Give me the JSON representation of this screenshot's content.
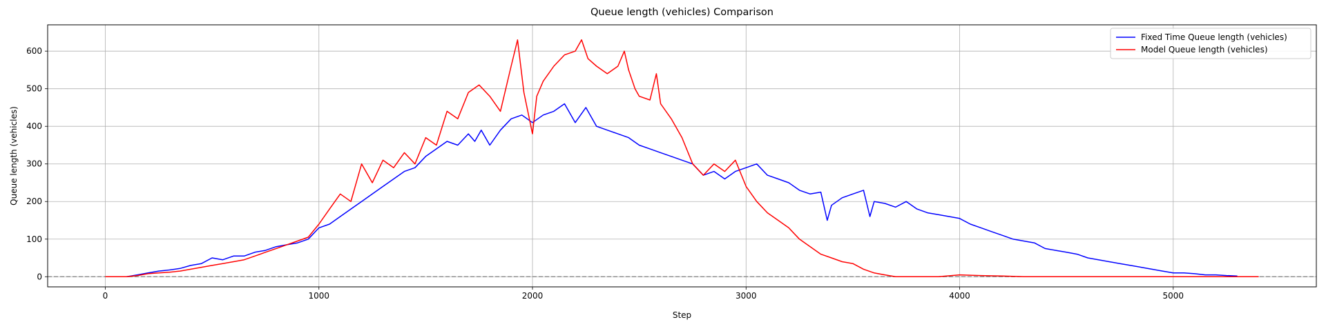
{
  "chart_data": {
    "type": "line",
    "title": "Queue length (vehicles) Comparison",
    "xlabel": "Step",
    "ylabel": "Queue length (vehicles)",
    "xlim": [
      -270,
      5670
    ],
    "ylim": [
      -27,
      670
    ],
    "xticks": [
      0,
      1000,
      2000,
      3000,
      4000,
      5000
    ],
    "yticks": [
      0,
      100,
      200,
      300,
      400,
      500,
      600
    ],
    "grid": true,
    "legend_position": "top-right",
    "reference_line": {
      "y": 0,
      "style": "dashed",
      "color": "#808080"
    },
    "series": [
      {
        "name": "Fixed Time Queue length (vehicles)",
        "color": "#0000ff",
        "x": [
          0,
          100,
          150,
          200,
          250,
          300,
          350,
          400,
          450,
          500,
          550,
          600,
          650,
          700,
          750,
          800,
          850,
          900,
          950,
          1000,
          1050,
          1100,
          1150,
          1200,
          1250,
          1300,
          1350,
          1400,
          1450,
          1500,
          1550,
          1600,
          1650,
          1700,
          1730,
          1760,
          1800,
          1850,
          1900,
          1950,
          2000,
          2050,
          2100,
          2150,
          2200,
          2250,
          2300,
          2350,
          2400,
          2450,
          2500,
          2550,
          2600,
          2650,
          2700,
          2750,
          2800,
          2850,
          2900,
          2950,
          3000,
          3050,
          3100,
          3150,
          3200,
          3250,
          3300,
          3350,
          3380,
          3400,
          3450,
          3500,
          3550,
          3580,
          3600,
          3650,
          3700,
          3750,
          3800,
          3850,
          3900,
          3950,
          4000,
          4050,
          4100,
          4150,
          4200,
          4250,
          4300,
          4350,
          4400,
          4450,
          4500,
          4550,
          4600,
          4650,
          4700,
          4750,
          4800,
          4850,
          4900,
          4950,
          5000,
          5050,
          5100,
          5150,
          5200,
          5250,
          5300
        ],
        "y": [
          0,
          0,
          5,
          10,
          15,
          18,
          22,
          30,
          35,
          50,
          45,
          55,
          55,
          65,
          70,
          80,
          85,
          90,
          100,
          130,
          140,
          160,
          180,
          200,
          220,
          240,
          260,
          280,
          290,
          320,
          340,
          360,
          350,
          380,
          360,
          390,
          350,
          390,
          420,
          430,
          410,
          430,
          440,
          460,
          410,
          450,
          400,
          390,
          380,
          370,
          350,
          340,
          330,
          320,
          310,
          300,
          270,
          280,
          260,
          280,
          290,
          300,
          270,
          260,
          250,
          230,
          220,
          225,
          150,
          190,
          210,
          220,
          230,
          160,
          200,
          195,
          185,
          200,
          180,
          170,
          165,
          160,
          155,
          140,
          130,
          120,
          110,
          100,
          95,
          90,
          75,
          70,
          65,
          60,
          50,
          45,
          40,
          35,
          30,
          25,
          20,
          15,
          10,
          10,
          8,
          5,
          5,
          3,
          2
        ]
      },
      {
        "name": "Model Queue length (vehicles)",
        "color": "#ff0000",
        "x": [
          0,
          100,
          150,
          200,
          250,
          300,
          350,
          400,
          450,
          500,
          550,
          600,
          650,
          700,
          750,
          800,
          850,
          900,
          950,
          1000,
          1050,
          1100,
          1150,
          1200,
          1250,
          1300,
          1350,
          1400,
          1450,
          1500,
          1550,
          1600,
          1650,
          1700,
          1750,
          1800,
          1850,
          1900,
          1930,
          1960,
          2000,
          2020,
          2050,
          2100,
          2150,
          2200,
          2230,
          2260,
          2300,
          2350,
          2400,
          2430,
          2450,
          2480,
          2500,
          2550,
          2580,
          2600,
          2650,
          2700,
          2750,
          2800,
          2850,
          2900,
          2950,
          3000,
          3050,
          3100,
          3150,
          3200,
          3250,
          3300,
          3350,
          3400,
          3450,
          3500,
          3550,
          3600,
          3650,
          3700,
          3800,
          3900,
          4000,
          4100,
          4200,
          4300,
          4400,
          4500,
          4600,
          4700,
          4800,
          4900,
          5000,
          5100,
          5200,
          5300,
          5400
        ],
        "y": [
          0,
          0,
          3,
          8,
          10,
          12,
          15,
          20,
          25,
          30,
          35,
          40,
          45,
          55,
          65,
          75,
          85,
          95,
          105,
          140,
          180,
          220,
          200,
          300,
          250,
          310,
          290,
          330,
          300,
          370,
          350,
          440,
          420,
          490,
          510,
          480,
          440,
          560,
          630,
          490,
          380,
          480,
          520,
          560,
          590,
          600,
          630,
          580,
          560,
          540,
          560,
          600,
          550,
          500,
          480,
          470,
          540,
          460,
          420,
          370,
          300,
          270,
          300,
          280,
          310,
          240,
          200,
          170,
          150,
          130,
          100,
          80,
          60,
          50,
          40,
          35,
          20,
          10,
          5,
          0,
          0,
          0,
          5,
          3,
          2,
          0,
          0,
          0,
          0,
          0,
          0,
          0,
          0,
          0,
          0,
          0,
          0
        ]
      }
    ]
  }
}
